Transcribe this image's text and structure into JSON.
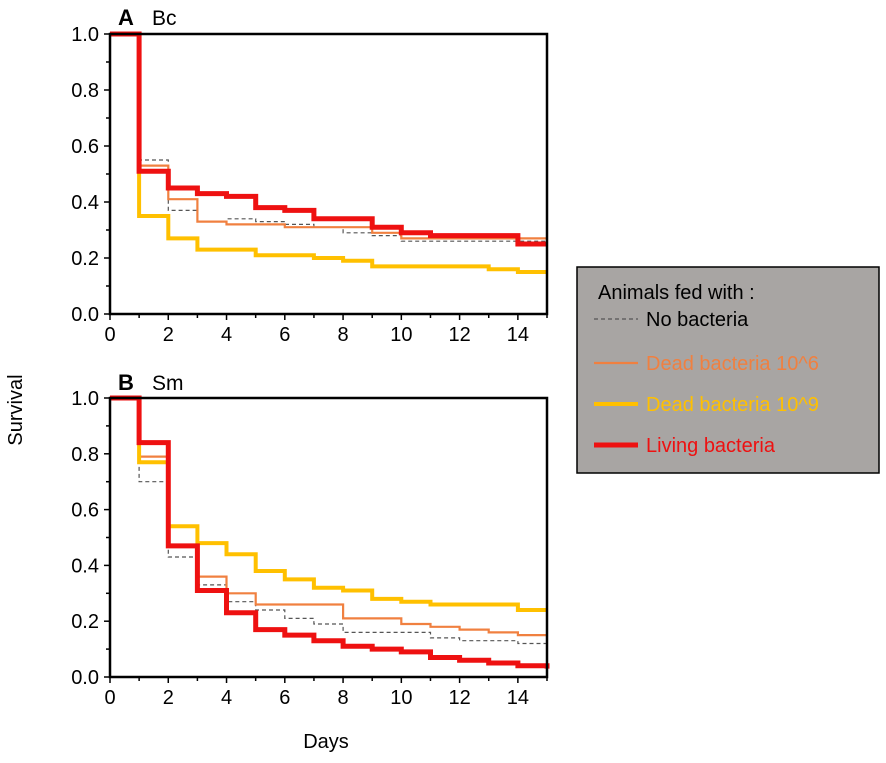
{
  "figure": {
    "ylabel": "Survival",
    "xlabel": "Days"
  },
  "legend": {
    "title": "Animals fed with :",
    "background": "#a8a5a3",
    "items": [
      {
        "label": "No bacteria",
        "color": "#555555",
        "style": "dashed"
      },
      {
        "label": "Dead bacteria 10^6",
        "color": "#f08040",
        "style": "thin"
      },
      {
        "label": "Dead bacteria 10^9",
        "color": "#ffc000",
        "style": "medium"
      },
      {
        "label": "Living bacteria",
        "color": "#ee1111",
        "style": "thick"
      }
    ]
  },
  "chart_data": [
    {
      "type": "line",
      "step": true,
      "panel_letter": "A",
      "title": "Bc",
      "xlabel": "",
      "ylabel": "Survival",
      "xlim": [
        0,
        15
      ],
      "ylim": [
        0,
        1
      ],
      "xticks": [
        "0",
        "2",
        "4",
        "6",
        "8",
        "10",
        "12",
        "14"
      ],
      "yticks": [
        "0.0",
        "0.2",
        "0.4",
        "0.6",
        "0.8",
        "1.0"
      ],
      "series": [
        {
          "name": "No bacteria",
          "x": [
            0,
            1,
            2,
            3,
            4,
            5,
            6,
            7,
            8,
            9,
            10,
            11,
            12,
            13,
            14,
            15
          ],
          "values": [
            1.0,
            0.55,
            0.37,
            0.33,
            0.34,
            0.33,
            0.32,
            0.31,
            0.29,
            0.28,
            0.26,
            0.26,
            0.26,
            0.26,
            0.26,
            0.26
          ]
        },
        {
          "name": "Dead bacteria 10^6",
          "x": [
            0,
            1,
            2,
            3,
            4,
            5,
            6,
            7,
            8,
            9,
            10,
            11,
            12,
            13,
            14,
            15
          ],
          "values": [
            1.0,
            0.53,
            0.41,
            0.33,
            0.32,
            0.32,
            0.31,
            0.31,
            0.31,
            0.29,
            0.27,
            0.27,
            0.27,
            0.27,
            0.27,
            0.27
          ]
        },
        {
          "name": "Dead bacteria 10^9",
          "x": [
            0,
            1,
            2,
            3,
            4,
            5,
            6,
            7,
            8,
            9,
            10,
            11,
            12,
            13,
            14,
            15
          ],
          "values": [
            1.0,
            0.35,
            0.27,
            0.23,
            0.23,
            0.21,
            0.21,
            0.2,
            0.19,
            0.17,
            0.17,
            0.17,
            0.17,
            0.16,
            0.15,
            0.15
          ]
        },
        {
          "name": "Living bacteria",
          "x": [
            0,
            1,
            2,
            3,
            4,
            5,
            6,
            7,
            8,
            9,
            10,
            11,
            12,
            13,
            14,
            15
          ],
          "values": [
            1.0,
            0.51,
            0.45,
            0.43,
            0.42,
            0.38,
            0.37,
            0.34,
            0.34,
            0.31,
            0.29,
            0.28,
            0.28,
            0.28,
            0.25,
            0.25
          ]
        }
      ]
    },
    {
      "type": "line",
      "step": true,
      "panel_letter": "B",
      "title": "Sm",
      "xlabel": "Days",
      "ylabel": "Survival",
      "xlim": [
        0,
        15
      ],
      "ylim": [
        0,
        1
      ],
      "xticks": [
        "0",
        "2",
        "4",
        "6",
        "8",
        "10",
        "12",
        "14"
      ],
      "yticks": [
        "0.0",
        "0.2",
        "0.4",
        "0.6",
        "0.8",
        "1.0"
      ],
      "series": [
        {
          "name": "No bacteria",
          "x": [
            0,
            1,
            2,
            3,
            4,
            5,
            6,
            7,
            8,
            9,
            10,
            11,
            12,
            13,
            14,
            15
          ],
          "values": [
            1.0,
            0.7,
            0.43,
            0.33,
            0.27,
            0.24,
            0.21,
            0.19,
            0.16,
            0.16,
            0.16,
            0.14,
            0.13,
            0.13,
            0.12,
            0.11
          ]
        },
        {
          "name": "Dead bacteria 10^6",
          "x": [
            0,
            1,
            2,
            3,
            4,
            5,
            6,
            7,
            8,
            9,
            10,
            11,
            12,
            13,
            14,
            15
          ],
          "values": [
            1.0,
            0.79,
            0.47,
            0.36,
            0.3,
            0.26,
            0.26,
            0.26,
            0.21,
            0.21,
            0.19,
            0.18,
            0.17,
            0.16,
            0.15,
            0.15
          ]
        },
        {
          "name": "Dead bacteria 10^9",
          "x": [
            0,
            1,
            2,
            3,
            4,
            5,
            6,
            7,
            8,
            9,
            10,
            11,
            12,
            13,
            14,
            15
          ],
          "values": [
            1.0,
            0.77,
            0.54,
            0.48,
            0.44,
            0.38,
            0.35,
            0.32,
            0.31,
            0.28,
            0.27,
            0.26,
            0.26,
            0.26,
            0.24,
            0.24
          ]
        },
        {
          "name": "Living bacteria",
          "x": [
            0,
            1,
            2,
            3,
            4,
            5,
            6,
            7,
            8,
            9,
            10,
            11,
            12,
            13,
            14,
            15
          ],
          "values": [
            1.0,
            0.84,
            0.47,
            0.31,
            0.23,
            0.17,
            0.15,
            0.13,
            0.11,
            0.1,
            0.09,
            0.07,
            0.06,
            0.05,
            0.04,
            0.03
          ]
        }
      ]
    }
  ]
}
